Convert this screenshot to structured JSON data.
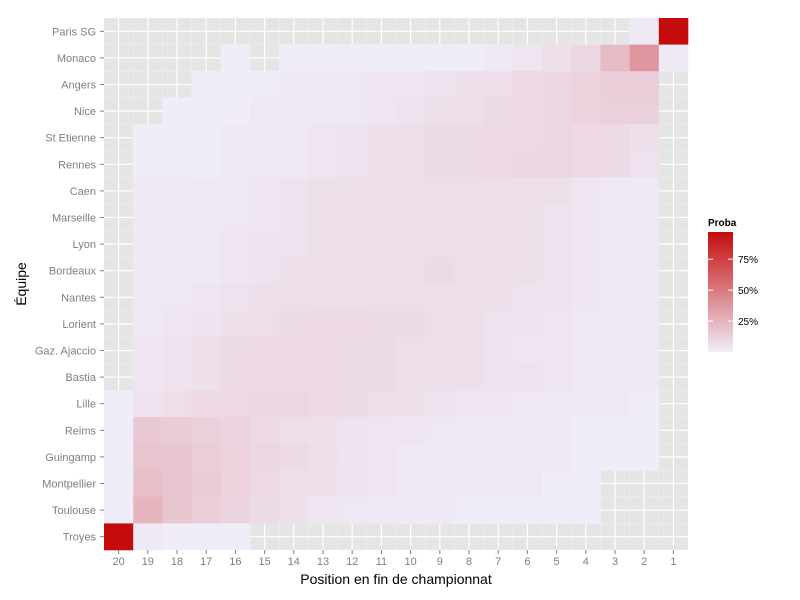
{
  "chart_data": {
    "type": "heatmap",
    "title": "",
    "xlabel": "Position en fin de championnat",
    "ylabel": "Équipe",
    "x_categories": [
      "20",
      "19",
      "18",
      "17",
      "16",
      "15",
      "14",
      "13",
      "12",
      "11",
      "10",
      "9",
      "8",
      "7",
      "6",
      "5",
      "4",
      "3",
      "2",
      "1"
    ],
    "y_categories": [
      "Paris SG",
      "Monaco",
      "Angers",
      "Nice",
      "St Etienne",
      "Rennes",
      "Caen",
      "Marseille",
      "Lyon",
      "Bordeaux",
      "Nantes",
      "Lorient",
      "Gaz. Ajaccio",
      "Bastia",
      "Lille",
      "Reims",
      "Guingamp",
      "Montpellier",
      "Toulouse",
      "Troyes"
    ],
    "grid": true,
    "legend": {
      "title": "Proba",
      "placement": "right",
      "ticks": [
        0.25,
        0.5,
        0.75
      ],
      "tick_labels": [
        "25%",
        "50%",
        "75%"
      ],
      "range": [
        0,
        0.97
      ],
      "color_low": "#f0eefa",
      "color_high": "#c40c0c"
    },
    "values_note": "estimated probability per (team, final position); null = not drawn",
    "values": [
      [
        null,
        null,
        null,
        null,
        null,
        null,
        null,
        null,
        null,
        null,
        null,
        null,
        null,
        null,
        null,
        null,
        null,
        null,
        0.02,
        0.97
      ],
      [
        null,
        null,
        null,
        null,
        0.01,
        null,
        0.01,
        0.01,
        0.01,
        0.01,
        0.01,
        0.01,
        0.01,
        0.02,
        0.04,
        0.06,
        0.1,
        0.22,
        0.38,
        0.02
      ],
      [
        null,
        null,
        null,
        0.01,
        0.01,
        0.01,
        0.02,
        0.02,
        0.03,
        0.04,
        0.04,
        0.05,
        0.06,
        0.07,
        0.09,
        0.1,
        0.12,
        0.14,
        0.14,
        null
      ],
      [
        null,
        null,
        0.01,
        0.01,
        0.01,
        0.02,
        0.02,
        0.03,
        0.03,
        0.04,
        0.05,
        0.06,
        0.07,
        0.08,
        0.09,
        0.1,
        0.12,
        0.13,
        0.13,
        null
      ],
      [
        null,
        0.01,
        0.01,
        0.01,
        0.02,
        0.03,
        0.03,
        0.04,
        0.05,
        0.06,
        0.07,
        0.08,
        0.08,
        0.09,
        0.09,
        0.1,
        0.09,
        0.08,
        0.06,
        null
      ],
      [
        null,
        0.01,
        0.01,
        0.01,
        0.02,
        0.03,
        0.03,
        0.04,
        0.05,
        0.06,
        0.07,
        0.08,
        0.08,
        0.09,
        0.1,
        0.1,
        0.09,
        0.08,
        0.05,
        null
      ],
      [
        null,
        0.02,
        0.02,
        0.03,
        0.03,
        0.04,
        0.05,
        0.06,
        0.06,
        0.07,
        0.07,
        0.07,
        0.07,
        0.07,
        0.06,
        0.06,
        0.04,
        0.03,
        0.02,
        null
      ],
      [
        null,
        0.02,
        0.02,
        0.03,
        0.03,
        0.04,
        0.05,
        0.06,
        0.06,
        0.07,
        0.07,
        0.07,
        0.07,
        0.07,
        0.06,
        0.05,
        0.04,
        0.03,
        0.02,
        null
      ],
      [
        null,
        0.02,
        0.02,
        0.03,
        0.04,
        0.05,
        0.05,
        0.06,
        0.07,
        0.07,
        0.07,
        0.07,
        0.07,
        0.07,
        0.06,
        0.05,
        0.04,
        0.03,
        0.02,
        null
      ],
      [
        null,
        0.02,
        0.03,
        0.03,
        0.04,
        0.05,
        0.06,
        0.06,
        0.07,
        0.07,
        0.07,
        0.08,
        0.07,
        0.07,
        0.06,
        0.05,
        0.04,
        0.03,
        0.02,
        null
      ],
      [
        null,
        0.03,
        0.03,
        0.04,
        0.05,
        0.06,
        0.07,
        0.07,
        0.07,
        0.07,
        0.07,
        0.07,
        0.07,
        0.06,
        0.05,
        0.05,
        0.04,
        0.03,
        0.02,
        null
      ],
      [
        null,
        0.03,
        0.04,
        0.05,
        0.06,
        0.07,
        0.08,
        0.09,
        0.09,
        0.08,
        0.08,
        0.07,
        0.06,
        0.05,
        0.05,
        0.04,
        0.03,
        0.02,
        0.02,
        null
      ],
      [
        null,
        0.04,
        0.05,
        0.07,
        0.08,
        0.09,
        0.09,
        0.09,
        0.08,
        0.08,
        0.07,
        0.06,
        0.06,
        0.05,
        0.04,
        0.04,
        0.03,
        0.02,
        0.02,
        null
      ],
      [
        null,
        0.04,
        0.05,
        0.06,
        0.08,
        0.09,
        0.09,
        0.09,
        0.08,
        0.08,
        0.07,
        0.06,
        0.06,
        0.05,
        0.05,
        0.04,
        0.03,
        0.02,
        0.02,
        null
      ],
      [
        0.01,
        0.05,
        0.07,
        0.09,
        0.09,
        0.1,
        0.1,
        0.09,
        0.08,
        0.07,
        0.06,
        0.05,
        0.04,
        0.04,
        0.03,
        0.03,
        0.02,
        0.02,
        0.01,
        null
      ],
      [
        0.01,
        0.16,
        0.15,
        0.13,
        0.11,
        0.09,
        0.07,
        0.06,
        0.05,
        0.04,
        0.04,
        0.03,
        0.03,
        0.02,
        0.02,
        0.02,
        0.01,
        0.01,
        0.01,
        null
      ],
      [
        0.01,
        0.18,
        0.17,
        0.14,
        0.12,
        0.1,
        0.08,
        0.07,
        0.05,
        0.04,
        0.03,
        0.03,
        0.03,
        0.02,
        0.02,
        0.02,
        0.01,
        0.01,
        0.01,
        null
      ],
      [
        0.01,
        0.2,
        0.18,
        0.15,
        0.12,
        0.09,
        0.07,
        0.06,
        0.05,
        0.04,
        0.03,
        0.03,
        0.02,
        0.02,
        0.02,
        0.01,
        0.01,
        null,
        null,
        null
      ],
      [
        0.01,
        0.25,
        0.17,
        0.14,
        0.11,
        0.08,
        0.06,
        0.04,
        0.03,
        0.03,
        0.02,
        0.02,
        0.01,
        0.01,
        0.01,
        0.01,
        0.01,
        null,
        null,
        null
      ],
      [
        0.97,
        0.02,
        0.01,
        0.01,
        0.01,
        null,
        null,
        null,
        null,
        null,
        null,
        null,
        null,
        null,
        null,
        null,
        null,
        null,
        null,
        null
      ]
    ]
  }
}
